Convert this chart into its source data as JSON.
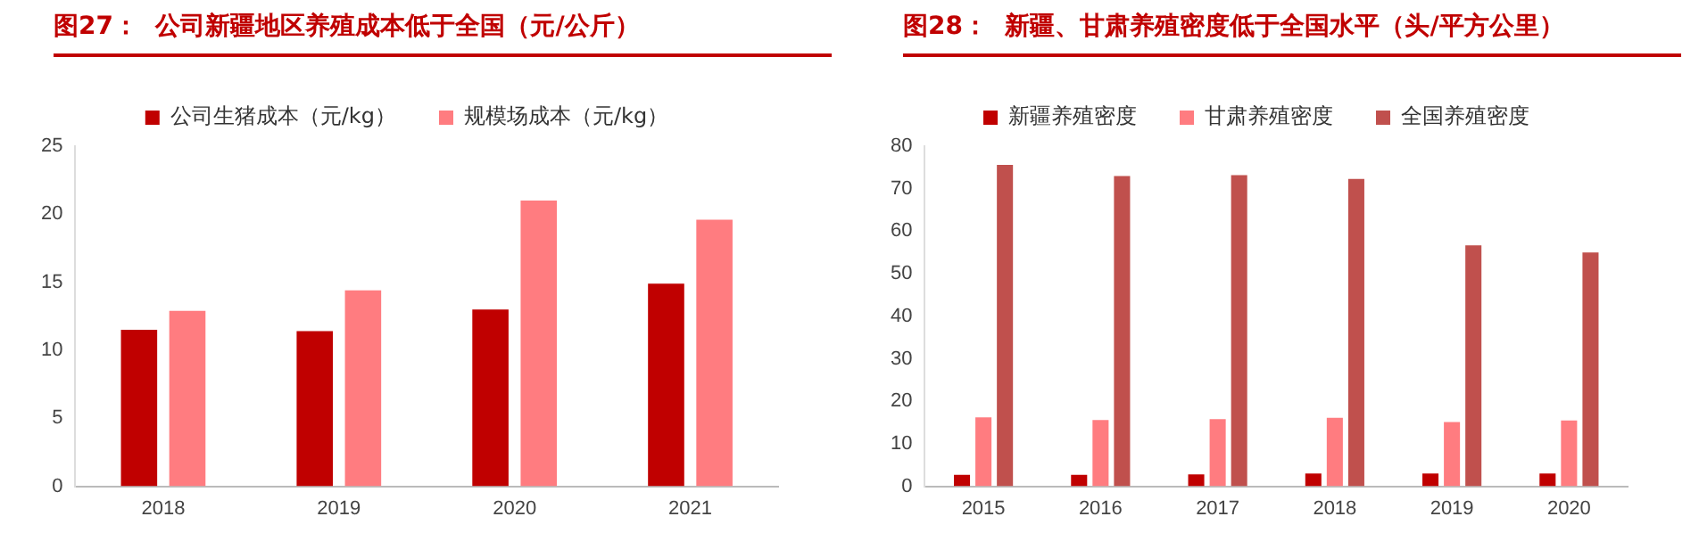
{
  "chart_data": [
    {
      "type": "bar",
      "title": "图27：  公司新疆地区养殖成本低于全国（元/公斤）",
      "categories": [
        "2018",
        "2019",
        "2020",
        "2021"
      ],
      "series": [
        {
          "name": "公司生猪成本（元/kg）",
          "color": "#c00000",
          "values": [
            11.5,
            11.4,
            13.0,
            14.9
          ]
        },
        {
          "name": "规模场成本（元/kg）",
          "color": "#ff7c80",
          "values": [
            12.9,
            14.4,
            21.0,
            19.6
          ]
        }
      ],
      "ylim": [
        0,
        25
      ],
      "yticks": [
        0,
        5,
        10,
        15,
        20,
        25
      ],
      "legend": "top",
      "grid": false
    },
    {
      "type": "bar",
      "title": "图28：  新疆、甘肃养殖密度低于全国水平（头/平方公里）",
      "categories": [
        "2015",
        "2016",
        "2017",
        "2018",
        "2019",
        "2020"
      ],
      "series": [
        {
          "name": "新疆养殖密度",
          "color": "#c00000",
          "values": [
            2.7,
            2.7,
            2.8,
            3.0,
            3.0,
            3.0
          ]
        },
        {
          "name": "甘肃养殖密度",
          "color": "#ff7c80",
          "values": [
            16.2,
            15.6,
            15.8,
            16.1,
            15.1,
            15.5
          ]
        },
        {
          "name": "全国养殖密度",
          "color": "#c0504d",
          "values": [
            75.6,
            73.0,
            73.2,
            72.3,
            56.7,
            55.0
          ]
        }
      ],
      "ylim": [
        0,
        80
      ],
      "yticks": [
        0,
        10,
        20,
        30,
        40,
        50,
        60,
        70,
        80
      ],
      "legend": "top",
      "grid": false
    }
  ]
}
